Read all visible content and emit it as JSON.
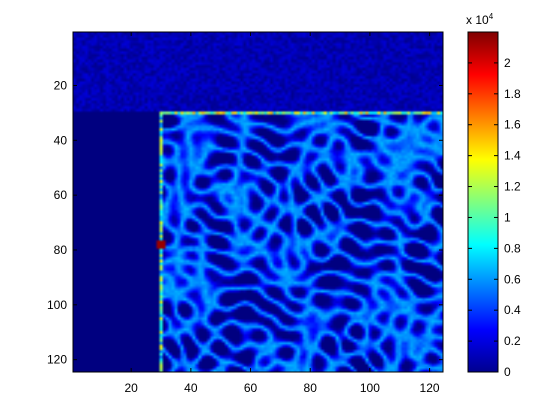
{
  "chart_data": {
    "type": "heatmap",
    "colormap": "jet",
    "xlim": [
      0.5,
      124.5
    ],
    "ylim": [
      0.5,
      124.5
    ],
    "y_axis_reversed": true,
    "x_ticks": [
      20,
      40,
      60,
      80,
      100,
      120
    ],
    "y_ticks": [
      20,
      40,
      60,
      80,
      100,
      120
    ],
    "x_tick_labels": [
      "20",
      "40",
      "60",
      "80",
      "100",
      "120"
    ],
    "y_tick_labels": [
      "20",
      "40",
      "60",
      "80",
      "100",
      "120"
    ],
    "colorbar": {
      "clim": [
        0,
        22000
      ],
      "ticks": [
        0,
        2000,
        4000,
        6000,
        8000,
        10000,
        12000,
        14000,
        16000,
        18000,
        20000
      ],
      "tick_labels": [
        "0",
        "0.2",
        "0.4",
        "0.6",
        "0.8",
        "1",
        "1.2",
        "1.4",
        "1.6",
        "1.8",
        "2"
      ],
      "multiplier_base": "x 10",
      "multiplier_exponent": "4"
    },
    "regions": {
      "top_band_rows": [
        1,
        29
      ],
      "left_empty_cols": [
        1,
        29
      ],
      "bright_top_edge_row": 30,
      "bright_left_edge_col": 30,
      "peak": {
        "col": 30,
        "row": 78,
        "value": 21500
      }
    }
  }
}
